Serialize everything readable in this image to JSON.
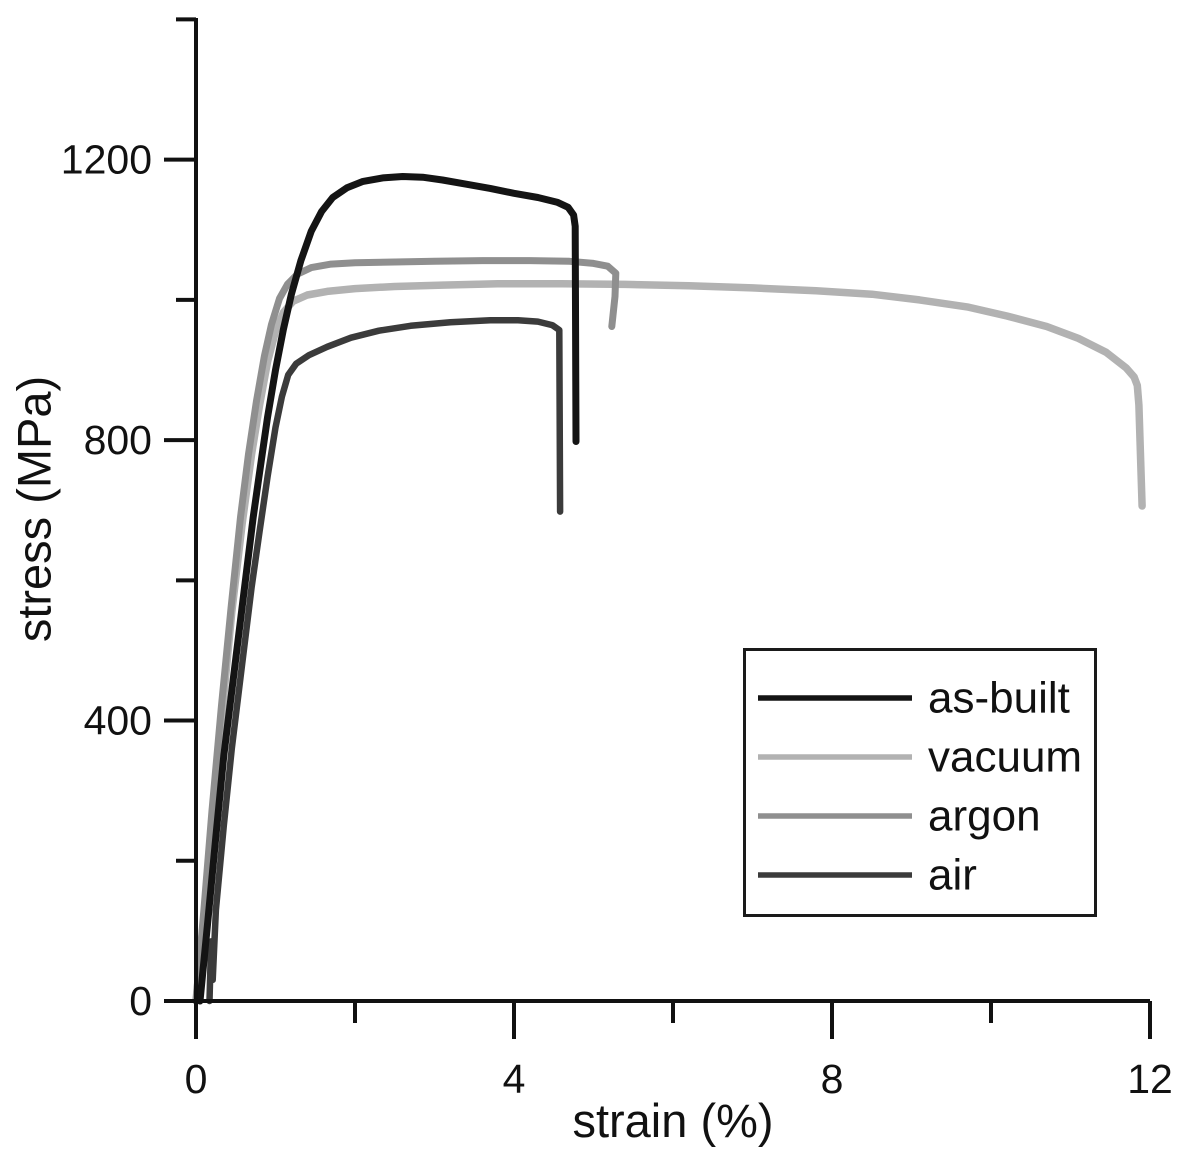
{
  "figure": {
    "background": "#ffffff",
    "axis_color": "#111111",
    "text_color": "#111111"
  },
  "chart_data": {
    "type": "line",
    "title": "",
    "xlabel": "strain (%)",
    "ylabel": "stress (MPa)",
    "xlim": [
      0,
      12
    ],
    "ylim": [
      0,
      1402
    ],
    "grid": false,
    "x_ticks_major": [
      0,
      4,
      8,
      12
    ],
    "x_tick_labels": [
      "0",
      "4",
      "8",
      "12"
    ],
    "x_ticks_minor": [
      2,
      6,
      10
    ],
    "y_ticks_major": [
      0,
      400,
      800,
      1200
    ],
    "y_tick_labels": [
      "0",
      "400",
      "800",
      "1200"
    ],
    "y_ticks_minor": [
      200,
      600,
      1000,
      1400
    ],
    "legend_position": "lower right",
    "draw_order": [
      "vacuum",
      "argon",
      "air",
      "as-built"
    ],
    "series": [
      {
        "name": "as-built",
        "color": "#141414",
        "line_width": 7,
        "points": [
          [
            0.05,
            0
          ],
          [
            0.15,
            115
          ],
          [
            0.25,
            235
          ],
          [
            0.35,
            350
          ],
          [
            0.48,
            470
          ],
          [
            0.6,
            580
          ],
          [
            0.72,
            690
          ],
          [
            0.82,
            770
          ],
          [
            0.9,
            833
          ],
          [
            1.0,
            900
          ],
          [
            1.1,
            958
          ],
          [
            1.2,
            1008
          ],
          [
            1.32,
            1056
          ],
          [
            1.45,
            1098
          ],
          [
            1.58,
            1126
          ],
          [
            1.72,
            1146
          ],
          [
            1.9,
            1160
          ],
          [
            2.1,
            1169
          ],
          [
            2.35,
            1174
          ],
          [
            2.6,
            1176
          ],
          [
            2.85,
            1175
          ],
          [
            3.1,
            1171
          ],
          [
            3.4,
            1165
          ],
          [
            3.7,
            1159
          ],
          [
            4.0,
            1152
          ],
          [
            4.3,
            1146
          ],
          [
            4.55,
            1139
          ],
          [
            4.68,
            1132
          ],
          [
            4.75,
            1121
          ],
          [
            4.77,
            1105
          ],
          [
            4.78,
            798
          ]
        ]
      },
      {
        "name": "vacuum",
        "color": "#b2b2b2",
        "line_width": 7.5,
        "points": [
          [
            0.0,
            0
          ],
          [
            0.1,
            120
          ],
          [
            0.2,
            255
          ],
          [
            0.32,
            400
          ],
          [
            0.45,
            555
          ],
          [
            0.58,
            680
          ],
          [
            0.7,
            780
          ],
          [
            0.8,
            850
          ],
          [
            0.9,
            912
          ],
          [
            1.0,
            955
          ],
          [
            1.1,
            982
          ],
          [
            1.22,
            998
          ],
          [
            1.4,
            1007
          ],
          [
            1.65,
            1012
          ],
          [
            2.0,
            1016
          ],
          [
            2.5,
            1019
          ],
          [
            3.1,
            1021
          ],
          [
            3.8,
            1023
          ],
          [
            4.6,
            1023
          ],
          [
            5.4,
            1022
          ],
          [
            6.2,
            1020
          ],
          [
            7.0,
            1017
          ],
          [
            7.8,
            1013
          ],
          [
            8.5,
            1008
          ],
          [
            9.1,
            1000
          ],
          [
            9.7,
            990
          ],
          [
            10.2,
            977
          ],
          [
            10.7,
            962
          ],
          [
            11.1,
            945
          ],
          [
            11.45,
            925
          ],
          [
            11.7,
            903
          ],
          [
            11.8,
            890
          ],
          [
            11.84,
            878
          ],
          [
            11.86,
            850
          ],
          [
            11.9,
            706
          ]
        ]
      },
      {
        "name": "argon",
        "color": "#8f8f8f",
        "line_width": 7,
        "points": [
          [
            0.0,
            0
          ],
          [
            0.1,
            130
          ],
          [
            0.2,
            270
          ],
          [
            0.32,
            420
          ],
          [
            0.44,
            560
          ],
          [
            0.56,
            690
          ],
          [
            0.66,
            780
          ],
          [
            0.76,
            855
          ],
          [
            0.86,
            920
          ],
          [
            0.95,
            965
          ],
          [
            1.05,
            1002
          ],
          [
            1.15,
            1022
          ],
          [
            1.28,
            1037
          ],
          [
            1.45,
            1046
          ],
          [
            1.7,
            1051
          ],
          [
            2.0,
            1053
          ],
          [
            2.5,
            1054
          ],
          [
            3.0,
            1055
          ],
          [
            3.6,
            1056
          ],
          [
            4.2,
            1056
          ],
          [
            4.7,
            1055
          ],
          [
            5.0,
            1052
          ],
          [
            5.18,
            1048
          ],
          [
            5.28,
            1038
          ],
          [
            5.27,
            1005
          ],
          [
            5.23,
            962
          ]
        ]
      },
      {
        "name": "air",
        "color": "#3b3b3b",
        "line_width": 6.5,
        "points": [
          [
            0.17,
            0
          ],
          [
            0.19,
            85
          ],
          [
            0.21,
            30
          ],
          [
            0.25,
            130
          ],
          [
            0.35,
            250
          ],
          [
            0.45,
            360
          ],
          [
            0.58,
            480
          ],
          [
            0.7,
            590
          ],
          [
            0.8,
            670
          ],
          [
            0.9,
            748
          ],
          [
            1.0,
            818
          ],
          [
            1.08,
            862
          ],
          [
            1.16,
            893
          ],
          [
            1.26,
            909
          ],
          [
            1.42,
            921
          ],
          [
            1.65,
            933
          ],
          [
            1.95,
            946
          ],
          [
            2.3,
            956
          ],
          [
            2.7,
            963
          ],
          [
            3.2,
            968
          ],
          [
            3.7,
            971
          ],
          [
            4.05,
            971
          ],
          [
            4.3,
            969
          ],
          [
            4.48,
            964
          ],
          [
            4.57,
            957
          ],
          [
            4.58,
            698
          ]
        ]
      }
    ]
  },
  "legend": {
    "border_color": "#1a1a1a",
    "background": "#ffffff",
    "items": [
      {
        "label": "as-built",
        "color": "#141414"
      },
      {
        "label": "vacuum",
        "color": "#b2b2b2"
      },
      {
        "label": "argon",
        "color": "#8f8f8f"
      },
      {
        "label": "air",
        "color": "#3b3b3b"
      }
    ]
  }
}
